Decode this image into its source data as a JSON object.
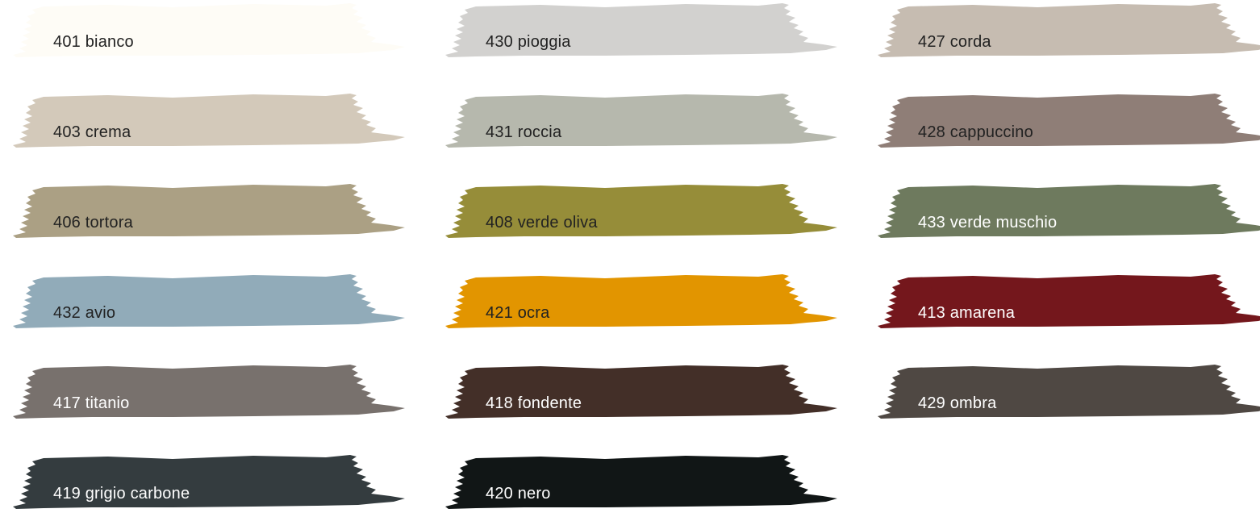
{
  "swatches": [
    {
      "label": "401 bianco",
      "color": "#fefcf6",
      "text_color": "#222222"
    },
    {
      "label": "430 pioggia",
      "color": "#d2d1cf",
      "text_color": "#222222"
    },
    {
      "label": "427 corda",
      "color": "#c6bcb1",
      "text_color": "#222222"
    },
    {
      "label": "403 crema",
      "color": "#d3c9ba",
      "text_color": "#222222"
    },
    {
      "label": "431 roccia",
      "color": "#b6b8ad",
      "text_color": "#222222"
    },
    {
      "label": "428 cappuccino",
      "color": "#8f7e77",
      "text_color": "#222222"
    },
    {
      "label": "406 tortora",
      "color": "#aba084",
      "text_color": "#222222"
    },
    {
      "label": "408 verde oliva",
      "color": "#968d39",
      "text_color": "#222222"
    },
    {
      "label": "433 verde muschio",
      "color": "#6e7a5e",
      "text_color": "#ffffff"
    },
    {
      "label": "432 avio",
      "color": "#91abb9",
      "text_color": "#222222"
    },
    {
      "label": "421 ocra",
      "color": "#e29500",
      "text_color": "#222222"
    },
    {
      "label": "413 amarena",
      "color": "#74171c",
      "text_color": "#ffffff"
    },
    {
      "label": "417 titanio",
      "color": "#78716d",
      "text_color": "#ffffff"
    },
    {
      "label": "418 fondente",
      "color": "#432f28",
      "text_color": "#ffffff"
    },
    {
      "label": "429 ombra",
      "color": "#4f4843",
      "text_color": "#ffffff"
    },
    {
      "label": "419 grigio carbone",
      "color": "#343c3f",
      "text_color": "#ffffff"
    },
    {
      "label": "420 nero",
      "color": "#111616",
      "text_color": "#ffffff"
    }
  ]
}
